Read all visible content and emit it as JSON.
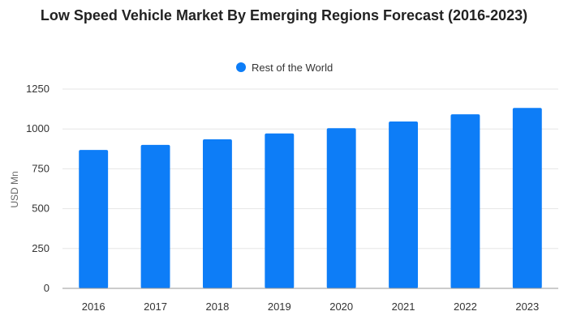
{
  "chart_data": {
    "type": "bar",
    "title": "Low Speed Vehicle Market By Emerging Regions Forecast (2016-2023)",
    "xlabel": "",
    "ylabel": "USD Mn",
    "categories": [
      "2016",
      "2017",
      "2018",
      "2019",
      "2020",
      "2021",
      "2022",
      "2023"
    ],
    "series": [
      {
        "name": "Rest of the World",
        "values": [
          868,
          900,
          935,
          972,
          1005,
          1047,
          1092,
          1132
        ]
      }
    ],
    "ylim": [
      0,
      1250
    ],
    "yticks": [
      0,
      250,
      500,
      750,
      1000,
      1250
    ],
    "grid": true,
    "legend_position": "top-center",
    "colors": {
      "bar": "#0D7DF7",
      "grid": "#e6e6e6",
      "axis": "#999999"
    }
  }
}
